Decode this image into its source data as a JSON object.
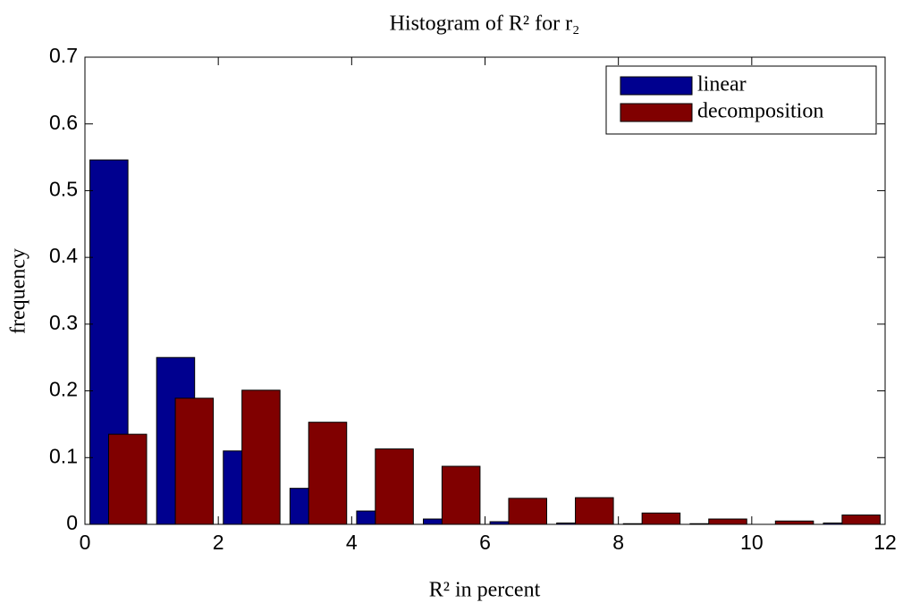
{
  "chart_data": {
    "type": "bar",
    "title": "Histogram of R² for r₂",
    "xlabel": "R² in percent",
    "ylabel": "frequency",
    "x": [
      0.5,
      1.5,
      2.5,
      3.5,
      4.5,
      5.5,
      6.5,
      7.5,
      8.5,
      9.5,
      10.5,
      11.5
    ],
    "series": [
      {
        "name": "linear",
        "color": "#00008f",
        "values": [
          0.546,
          0.25,
          0.11,
          0.054,
          0.02,
          0.008,
          0.004,
          0.002,
          0.001,
          0.001,
          0,
          0.002
        ]
      },
      {
        "name": "decomposition",
        "color": "#800000",
        "values": [
          0.135,
          0.189,
          0.201,
          0.153,
          0.113,
          0.087,
          0.039,
          0.04,
          0.017,
          0.008,
          0.005,
          0.014
        ]
      }
    ],
    "xlim": [
      0,
      12
    ],
    "xticks": [
      0,
      2,
      4,
      6,
      8,
      10,
      12
    ],
    "ylim": [
      0,
      0.7
    ],
    "yticks": [
      0,
      0.1,
      0.2,
      0.3,
      0.4,
      0.5,
      0.6,
      0.7
    ],
    "legend": "top-right"
  }
}
